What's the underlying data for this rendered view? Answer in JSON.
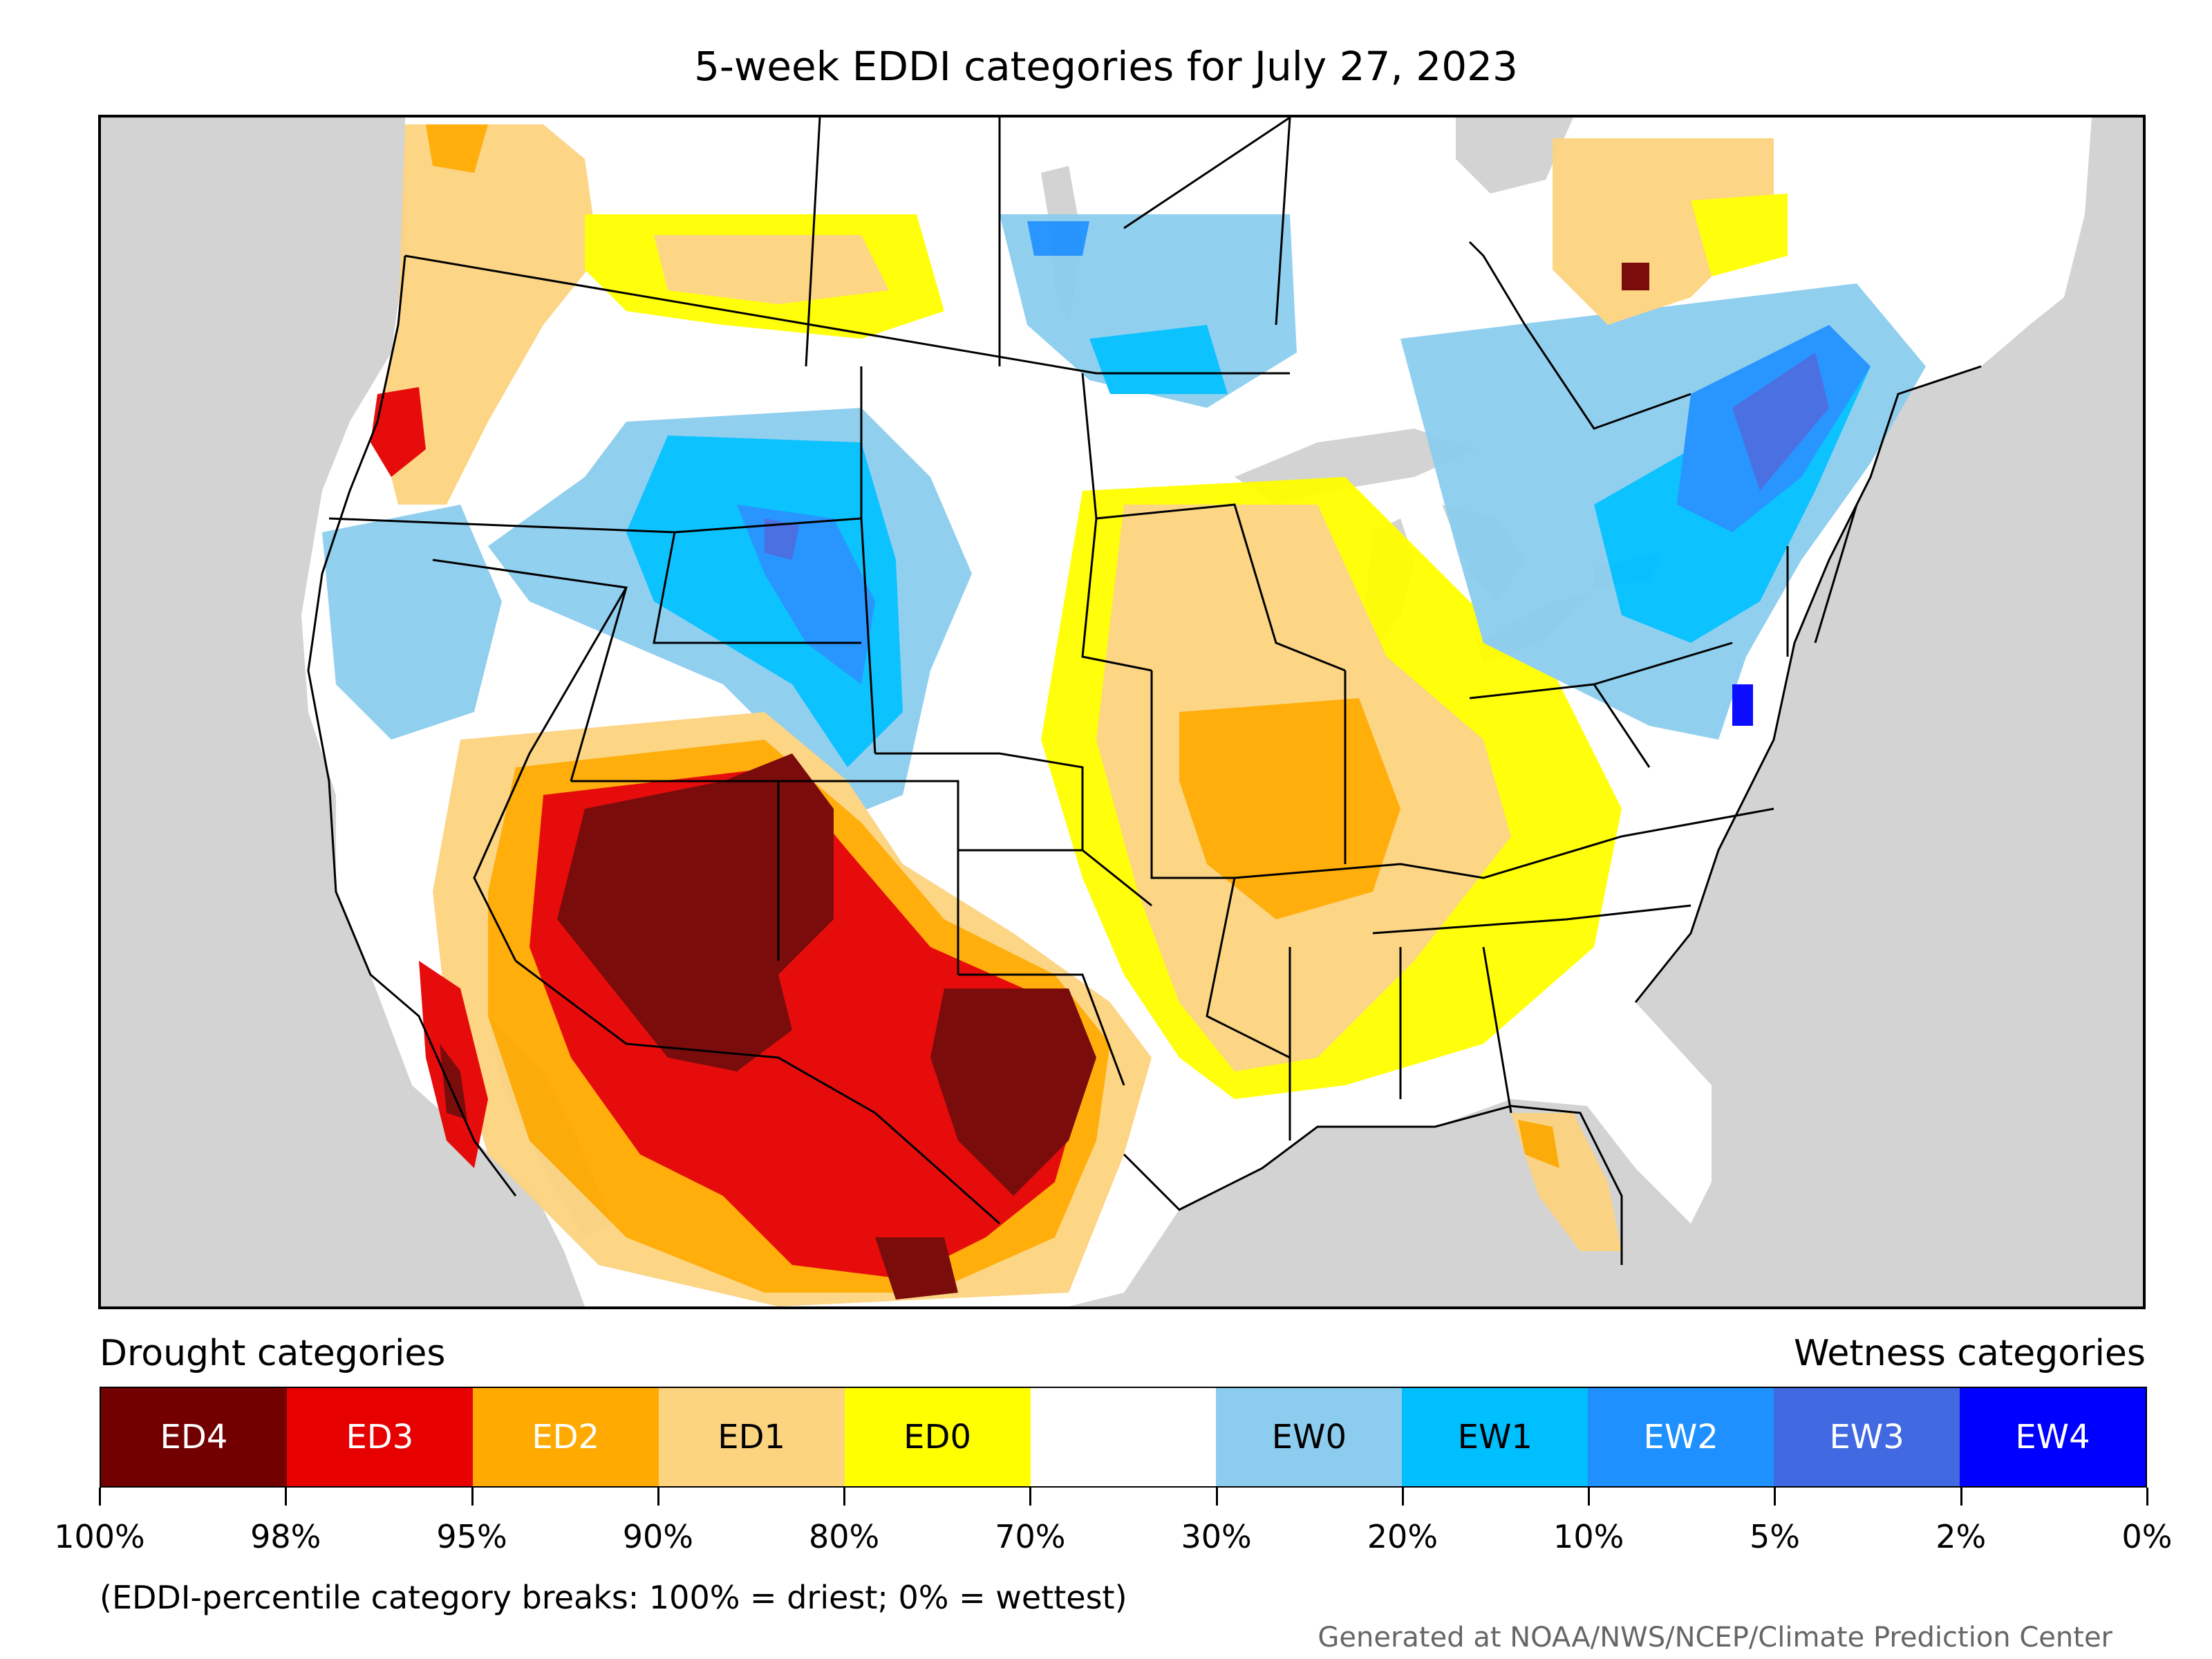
{
  "title": "5-week EDDI categories for July 27, 2023",
  "legend": {
    "drought_heading": "Drought categories",
    "wetness_heading": "Wetness categories",
    "categories": [
      {
        "label": "ED4",
        "color": "#730000",
        "text_color": "#ffffff"
      },
      {
        "label": "ED3",
        "color": "#e60000",
        "text_color": "#ffffff"
      },
      {
        "label": "ED2",
        "color": "#ffaa00",
        "text_color": "#ffffff"
      },
      {
        "label": "ED1",
        "color": "#fcd37f",
        "text_color": "#000000"
      },
      {
        "label": "ED0",
        "color": "#ffff00",
        "text_color": "#000000"
      },
      {
        "label": "",
        "color": "#ffffff",
        "text_color": "#000000"
      },
      {
        "label": "EW0",
        "color": "#8ccdef",
        "text_color": "#000000"
      },
      {
        "label": "EW1",
        "color": "#00bfff",
        "text_color": "#000000"
      },
      {
        "label": "EW2",
        "color": "#1e90ff",
        "text_color": "#ffffff"
      },
      {
        "label": "EW3",
        "color": "#4169e1",
        "text_color": "#ffffff"
      },
      {
        "label": "EW4",
        "color": "#0000ff",
        "text_color": "#ffffff"
      }
    ],
    "breaks": [
      "100%",
      "98%",
      "95%",
      "90%",
      "80%",
      "70%",
      "30%",
      "20%",
      "10%",
      "5%",
      "2%",
      "0%"
    ]
  },
  "note": "(EDDI-percentile category breaks: 100% = driest; 0% = wettest)",
  "credit": "Generated at NOAA/NWS/NCEP/Climate Prediction Center",
  "colors": {
    "land_outside": "#d3d3d3",
    "water": "#d3d3d3",
    "border": "#000000"
  }
}
